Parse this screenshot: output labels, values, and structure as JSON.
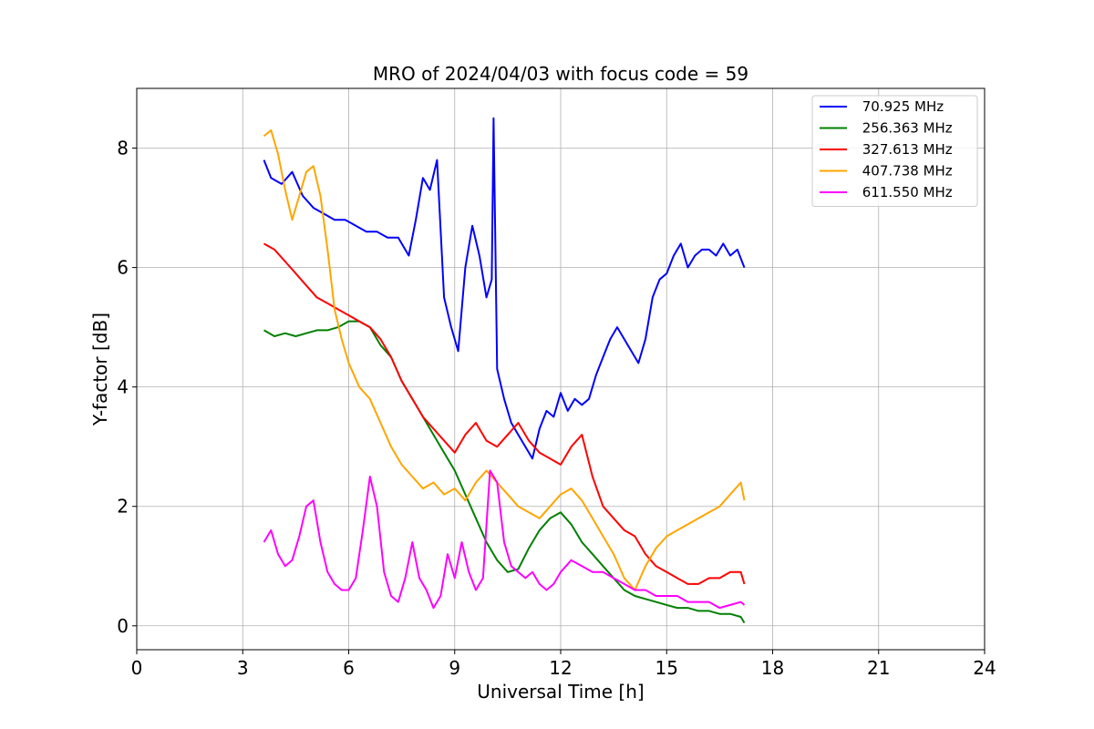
{
  "chart_data": {
    "type": "line",
    "title": "MRO of 2024/04/03 with focus code = 59",
    "xlabel": "Universal Time [h]",
    "ylabel": "Y-factor [dB]",
    "xlim": [
      0,
      24
    ],
    "ylim": [
      -0.4,
      9.0
    ],
    "xticks": [
      0,
      3,
      6,
      9,
      12,
      15,
      18,
      21,
      24
    ],
    "yticks": [
      0,
      2,
      4,
      6,
      8
    ],
    "grid": true,
    "legend_position": "top-right",
    "series": [
      {
        "name": " 70.925 MHz",
        "color": "#0000ff",
        "x": [
          3.6,
          3.8,
          4.1,
          4.4,
          4.7,
          5.0,
          5.3,
          5.6,
          5.9,
          6.2,
          6.5,
          6.8,
          7.1,
          7.4,
          7.7,
          7.9,
          8.1,
          8.3,
          8.5,
          8.7,
          8.9,
          9.1,
          9.3,
          9.5,
          9.7,
          9.9,
          10.05,
          10.1,
          10.2,
          10.4,
          10.6,
          10.8,
          11.0,
          11.2,
          11.4,
          11.6,
          11.8,
          12.0,
          12.2,
          12.4,
          12.6,
          12.8,
          13.0,
          13.2,
          13.4,
          13.6,
          13.8,
          14.0,
          14.2,
          14.4,
          14.6,
          14.8,
          15.0,
          15.2,
          15.4,
          15.6,
          15.8,
          16.0,
          16.2,
          16.4,
          16.6,
          16.8,
          17.0,
          17.2
        ],
        "y": [
          7.8,
          7.5,
          7.4,
          7.6,
          7.2,
          7.0,
          6.9,
          6.8,
          6.8,
          6.7,
          6.6,
          6.6,
          6.5,
          6.5,
          6.2,
          6.8,
          7.5,
          7.3,
          7.8,
          5.5,
          5.0,
          4.6,
          6.0,
          6.7,
          6.2,
          5.5,
          5.8,
          8.5,
          4.3,
          3.8,
          3.4,
          3.2,
          3.0,
          2.8,
          3.3,
          3.6,
          3.5,
          3.9,
          3.6,
          3.8,
          3.7,
          3.8,
          4.2,
          4.5,
          4.8,
          5.0,
          4.8,
          4.6,
          4.4,
          4.8,
          5.5,
          5.8,
          5.9,
          6.2,
          6.4,
          6.0,
          6.2,
          6.3,
          6.3,
          6.2,
          6.4,
          6.2,
          6.3,
          6.0
        ]
      },
      {
        "name": " 256.363 MHz",
        "color": "#008000",
        "x": [
          3.6,
          3.9,
          4.2,
          4.5,
          4.8,
          5.1,
          5.4,
          5.7,
          6.0,
          6.3,
          6.6,
          6.9,
          7.2,
          7.5,
          7.8,
          8.1,
          8.4,
          8.7,
          9.0,
          9.3,
          9.6,
          9.9,
          10.2,
          10.5,
          10.8,
          11.1,
          11.4,
          11.7,
          12.0,
          12.3,
          12.6,
          12.9,
          13.2,
          13.5,
          13.8,
          14.1,
          14.4,
          14.7,
          15.0,
          15.3,
          15.6,
          15.9,
          16.2,
          16.5,
          16.8,
          17.1,
          17.2
        ],
        "y": [
          4.95,
          4.85,
          4.9,
          4.85,
          4.9,
          4.95,
          4.95,
          5.0,
          5.1,
          5.1,
          5.0,
          4.7,
          4.5,
          4.1,
          3.8,
          3.5,
          3.2,
          2.9,
          2.6,
          2.2,
          1.8,
          1.4,
          1.1,
          0.9,
          0.95,
          1.3,
          1.6,
          1.8,
          1.9,
          1.7,
          1.4,
          1.2,
          1.0,
          0.8,
          0.6,
          0.5,
          0.45,
          0.4,
          0.35,
          0.3,
          0.3,
          0.25,
          0.25,
          0.2,
          0.2,
          0.15,
          0.05
        ]
      },
      {
        "name": " 327.613 MHz",
        "color": "#ff0000",
        "x": [
          3.6,
          3.9,
          4.2,
          4.5,
          4.8,
          5.1,
          5.4,
          5.7,
          6.0,
          6.3,
          6.6,
          6.9,
          7.2,
          7.5,
          7.8,
          8.1,
          8.4,
          8.7,
          9.0,
          9.3,
          9.6,
          9.9,
          10.2,
          10.5,
          10.8,
          11.1,
          11.4,
          11.7,
          12.0,
          12.3,
          12.6,
          12.9,
          13.2,
          13.5,
          13.8,
          14.1,
          14.4,
          14.7,
          15.0,
          15.3,
          15.6,
          15.9,
          16.2,
          16.5,
          16.8,
          17.1,
          17.2
        ],
        "y": [
          6.4,
          6.3,
          6.1,
          5.9,
          5.7,
          5.5,
          5.4,
          5.3,
          5.2,
          5.1,
          5.0,
          4.8,
          4.5,
          4.1,
          3.8,
          3.5,
          3.3,
          3.1,
          2.9,
          3.2,
          3.4,
          3.1,
          3.0,
          3.2,
          3.4,
          3.1,
          2.9,
          2.8,
          2.7,
          3.0,
          3.2,
          2.5,
          2.0,
          1.8,
          1.6,
          1.5,
          1.2,
          1.0,
          0.9,
          0.8,
          0.7,
          0.7,
          0.8,
          0.8,
          0.9,
          0.9,
          0.7
        ]
      },
      {
        "name": " 407.738 MHz",
        "color": "#ffa500",
        "x": [
          3.6,
          3.8,
          4.0,
          4.2,
          4.4,
          4.6,
          4.8,
          5.0,
          5.2,
          5.4,
          5.6,
          5.8,
          6.0,
          6.3,
          6.6,
          6.9,
          7.2,
          7.5,
          7.8,
          8.1,
          8.4,
          8.7,
          9.0,
          9.3,
          9.6,
          9.9,
          10.2,
          10.5,
          10.8,
          11.1,
          11.4,
          11.7,
          12.0,
          12.3,
          12.6,
          12.9,
          13.2,
          13.5,
          13.8,
          14.1,
          14.4,
          14.7,
          15.0,
          15.3,
          15.6,
          15.9,
          16.2,
          16.5,
          16.8,
          17.1,
          17.2
        ],
        "y": [
          8.2,
          8.3,
          7.9,
          7.3,
          6.8,
          7.2,
          7.6,
          7.7,
          7.2,
          6.3,
          5.3,
          4.8,
          4.4,
          4.0,
          3.8,
          3.4,
          3.0,
          2.7,
          2.5,
          2.3,
          2.4,
          2.2,
          2.3,
          2.1,
          2.4,
          2.6,
          2.4,
          2.2,
          2.0,
          1.9,
          1.8,
          2.0,
          2.2,
          2.3,
          2.1,
          1.8,
          1.5,
          1.2,
          0.8,
          0.6,
          1.0,
          1.3,
          1.5,
          1.6,
          1.7,
          1.8,
          1.9,
          2.0,
          2.2,
          2.4,
          2.1
        ]
      },
      {
        "name": " 611.550 MHz",
        "color": "#ff00ff",
        "x": [
          3.6,
          3.8,
          4.0,
          4.2,
          4.4,
          4.6,
          4.8,
          5.0,
          5.2,
          5.4,
          5.6,
          5.8,
          6.0,
          6.2,
          6.4,
          6.6,
          6.8,
          7.0,
          7.2,
          7.4,
          7.6,
          7.8,
          8.0,
          8.2,
          8.4,
          8.6,
          8.8,
          9.0,
          9.2,
          9.4,
          9.6,
          9.8,
          10.0,
          10.2,
          10.4,
          10.6,
          10.8,
          11.0,
          11.2,
          11.4,
          11.6,
          11.8,
          12.0,
          12.3,
          12.6,
          12.9,
          13.2,
          13.5,
          13.8,
          14.1,
          14.4,
          14.7,
          15.0,
          15.3,
          15.6,
          15.9,
          16.2,
          16.5,
          16.8,
          17.1,
          17.2
        ],
        "y": [
          1.4,
          1.6,
          1.2,
          1.0,
          1.1,
          1.5,
          2.0,
          2.1,
          1.4,
          0.9,
          0.7,
          0.6,
          0.6,
          0.8,
          1.6,
          2.5,
          2.0,
          0.9,
          0.5,
          0.4,
          0.8,
          1.4,
          0.8,
          0.6,
          0.3,
          0.5,
          1.2,
          0.8,
          1.4,
          0.9,
          0.6,
          0.8,
          2.6,
          2.4,
          1.4,
          1.0,
          0.9,
          0.8,
          0.9,
          0.7,
          0.6,
          0.7,
          0.9,
          1.1,
          1.0,
          0.9,
          0.9,
          0.8,
          0.7,
          0.6,
          0.6,
          0.5,
          0.5,
          0.5,
          0.4,
          0.4,
          0.4,
          0.3,
          0.35,
          0.4,
          0.35
        ]
      }
    ]
  }
}
